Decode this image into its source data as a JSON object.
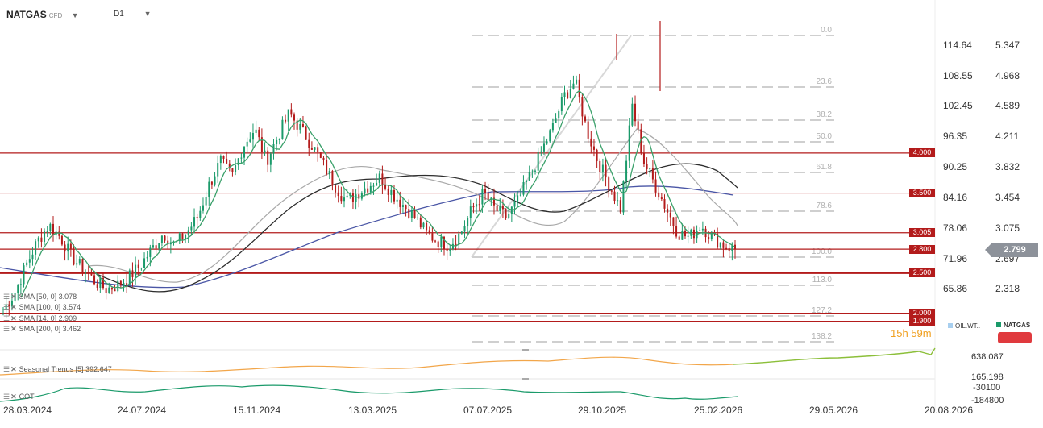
{
  "header": {
    "symbol": "NATGAS",
    "symbol_type": "CFD",
    "timeframe": "D1"
  },
  "price_axis_left": [
    "114.64",
    "108.55",
    "102.45",
    "96.35",
    "90.25",
    "84.16",
    "78.06",
    "71.96",
    "65.86"
  ],
  "price_axis_right": [
    "5.347",
    "4.968",
    "4.589",
    "4.211",
    "3.832",
    "3.454",
    "3.075",
    "2.697",
    "2.318"
  ],
  "current_price": "2.799",
  "levels": [
    {
      "label": "4.000"
    },
    {
      "label": "3.500"
    },
    {
      "label": "3.005"
    },
    {
      "label": "2.800"
    },
    {
      "label": "2.500"
    },
    {
      "label": "2.000"
    },
    {
      "label": "1.900"
    }
  ],
  "fib_labels": [
    "0.0",
    "23.6",
    "38.2",
    "50.0",
    "61.8",
    "78.6",
    "100.0",
    "113.0",
    "127.2",
    "138.2"
  ],
  "indicators": [
    {
      "text": "SMA [50, 0] 3.078",
      "color": "#3aa06a"
    },
    {
      "text": "SMA [100, 0] 3.574",
      "color": "#9a9a9a"
    },
    {
      "text": "SMA [14, 0] 2.909",
      "color": "#2d2d2d"
    },
    {
      "text": "SMA [200, 0] 3.462",
      "color": "#4a56a6"
    }
  ],
  "seasonal": {
    "text": "Seasonal Trends [5] 392.647",
    "axis_top": "638.087",
    "axis_bottom": "165.198"
  },
  "cot": {
    "text": "COT",
    "axis_top": "-30100",
    "axis_bottom": "-184800"
  },
  "legend": {
    "oil": "OIL.WT..",
    "natgas": "NATGAS",
    "oil_color": "#a8cfef",
    "natgas_color": "#1a9a6a"
  },
  "timer": {
    "hours": "15h",
    "minutes": "59m"
  },
  "dates": [
    "28.03.2024",
    "24.07.2024",
    "15.11.2024",
    "13.03.2025",
    "07.07.2025",
    "29.10.2025",
    "25.02.2026",
    "29.05.2026",
    "20.08.2026"
  ],
  "colors": {
    "up": "#1a9a6a",
    "down": "#b31b1b",
    "level": "#b31b1b",
    "accent": "#e03a3e"
  },
  "chart_data": {
    "type": "candlestick",
    "price_range": [
      1.55,
      5.6
    ],
    "close_path": [
      2.05,
      2.25,
      2.6,
      2.9,
      3.1,
      2.95,
      2.7,
      2.55,
      2.4,
      2.3,
      2.35,
      2.45,
      2.6,
      2.8,
      3.0,
      2.85,
      3.0,
      3.2,
      3.6,
      3.9,
      3.7,
      4.1,
      4.3,
      3.9,
      4.2,
      4.5,
      4.3,
      4.1,
      3.85,
      3.6,
      3.4,
      3.5,
      3.6,
      3.7,
      3.5,
      3.35,
      3.2,
      3.0,
      2.9,
      2.85,
      3.0,
      3.3,
      3.5,
      3.3,
      3.2,
      3.4,
      3.7,
      4.0,
      4.3,
      4.7,
      4.9,
      4.3,
      3.9,
      3.6,
      3.3,
      4.6,
      3.9,
      3.6,
      3.3,
      3.0,
      2.95,
      3.1,
      2.95,
      2.85,
      2.8
    ]
  }
}
